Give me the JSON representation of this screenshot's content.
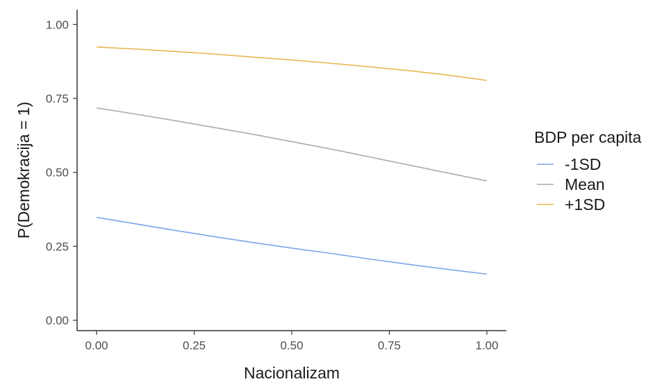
{
  "chart_data": {
    "type": "line",
    "xlabel": "Nacionalizam",
    "ylabel": "P(Demokracija = 1)",
    "xlim": [
      -0.05,
      1.05
    ],
    "ylim": [
      -0.035,
      1.05
    ],
    "x_ticks": [
      0,
      0.25,
      0.5,
      0.75,
      1
    ],
    "x_tick_labels": [
      "0.00",
      "0.25",
      "0.50",
      "0.75",
      "1.00"
    ],
    "y_ticks": [
      0,
      0.25,
      0.5,
      0.75,
      1
    ],
    "y_tick_labels": [
      "0.00",
      "0.25",
      "0.50",
      "0.75",
      "1.00"
    ],
    "grid": false,
    "legend": {
      "title": "BDP per capita",
      "position": "right"
    },
    "x": [
      0,
      0.1,
      0.2,
      0.3,
      0.4,
      0.5,
      0.6,
      0.7,
      0.8,
      0.9,
      1.0
    ],
    "series": [
      {
        "name": "-1SD",
        "color": "#7aa6e8",
        "values": [
          0.348,
          0.326,
          0.304,
          0.283,
          0.263,
          0.244,
          0.226,
          0.207,
          0.189,
          0.172,
          0.156
        ]
      },
      {
        "name": "Mean",
        "color": "#aaaaaa",
        "values": [
          0.718,
          0.697,
          0.675,
          0.652,
          0.629,
          0.604,
          0.579,
          0.552,
          0.525,
          0.498,
          0.471
        ]
      },
      {
        "name": "+1SD",
        "color": "#e8b450",
        "values": [
          0.924,
          0.917,
          0.909,
          0.9,
          0.89,
          0.88,
          0.869,
          0.857,
          0.844,
          0.829,
          0.811
        ]
      }
    ]
  }
}
